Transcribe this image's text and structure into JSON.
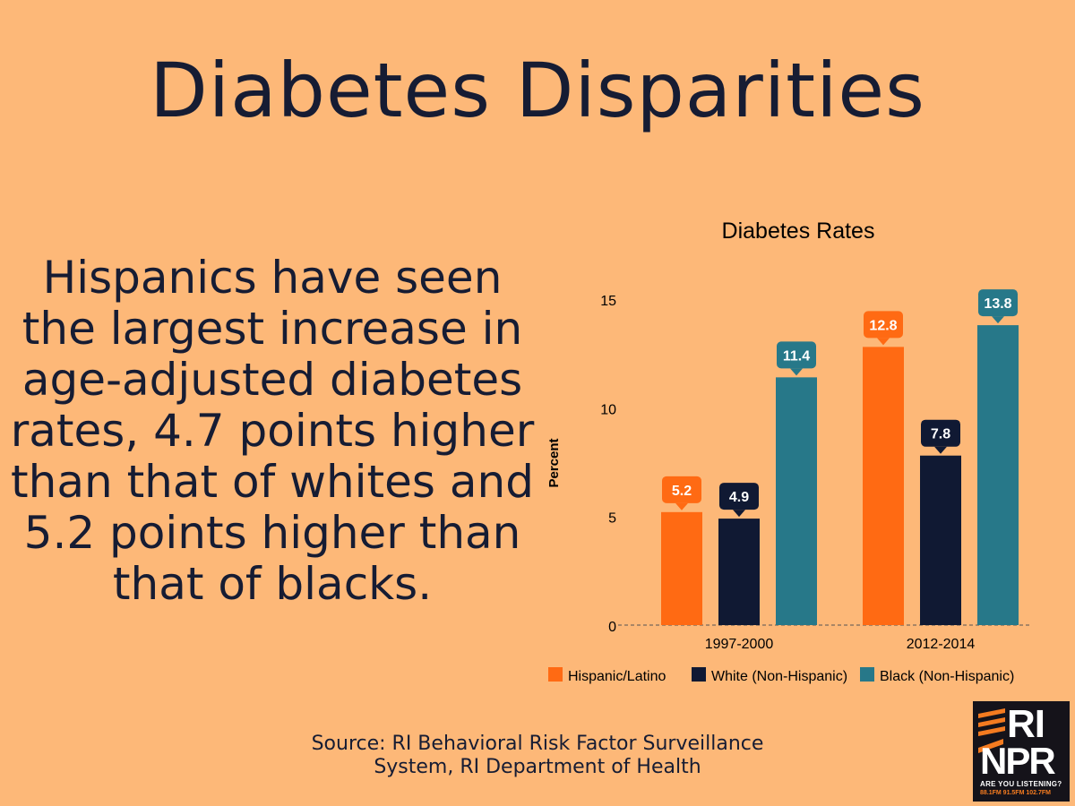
{
  "title": "Diabetes Disparities",
  "body_text": "Hispanics have seen the largest increase in age-adjusted diabetes rates, 4.7 points higher than that of whites and 5.2 points higher than that of blacks.",
  "source": {
    "line1": "Source: RI Behavioral Risk Factor Surveillance",
    "line2": "System, RI Department of Health"
  },
  "logo": {
    "ri": "RI",
    "npr": "NPR",
    "tagline": "ARE YOU LISTENING?",
    "frequencies": "88.1FM 91.5FM 102.7FM"
  },
  "chart_data": {
    "type": "bar",
    "title": "Diabetes Rates",
    "ylabel": "Percent",
    "xlabel": "",
    "categories": [
      "1997-2000",
      "2012-2014"
    ],
    "ylim": [
      0,
      15
    ],
    "yticks": [
      0,
      5,
      10,
      15
    ],
    "grid": false,
    "legend_position": "bottom",
    "series": [
      {
        "name": "Hispanic/Latino",
        "color": "#FF6A13",
        "values": [
          5.2,
          12.8
        ]
      },
      {
        "name": "White (Non-Hispanic)",
        "color": "#101933",
        "values": [
          4.9,
          7.8
        ]
      },
      {
        "name": "Black (Non-Hispanic)",
        "color": "#277889",
        "values": [
          11.4,
          13.8
        ]
      }
    ]
  }
}
